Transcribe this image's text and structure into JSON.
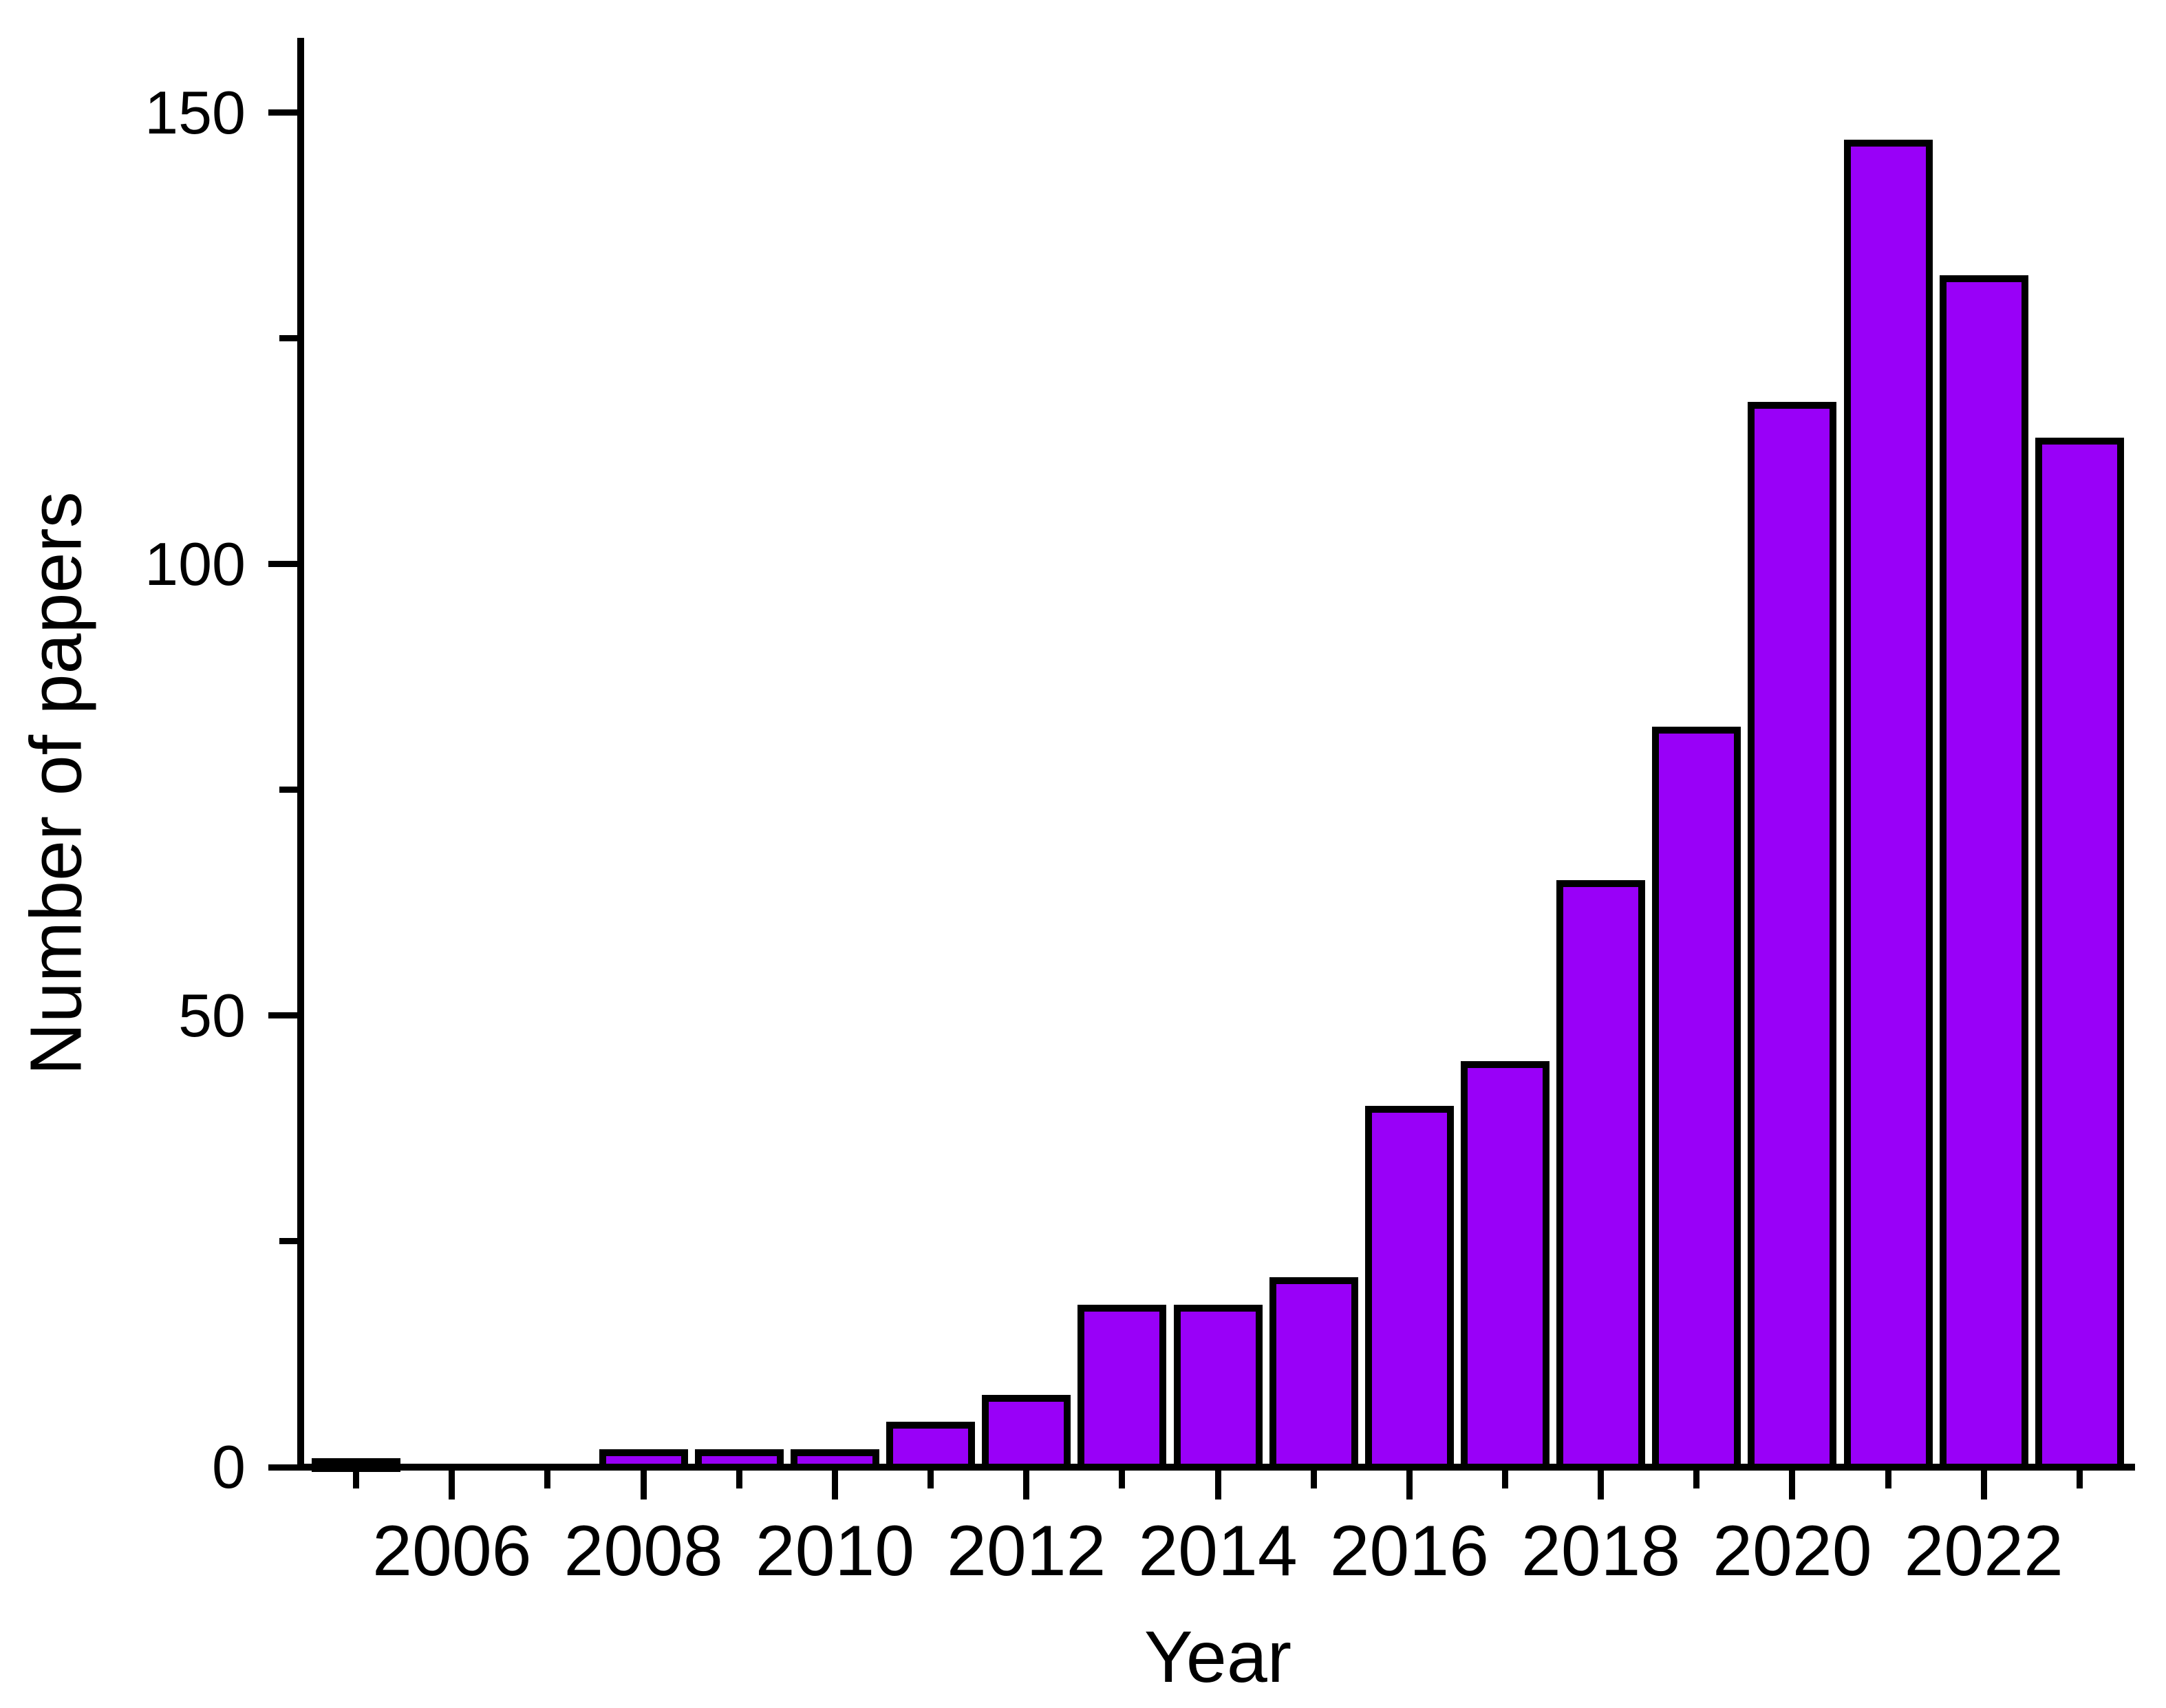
{
  "page": {
    "background": "#FFFFFF"
  },
  "chart_data": {
    "type": "bar",
    "title": "",
    "xlabel": "Year",
    "ylabel": "Number of papers",
    "categories": [
      2005,
      2006,
      2007,
      2008,
      2009,
      2010,
      2011,
      2012,
      2013,
      2014,
      2015,
      2016,
      2017,
      2018,
      2019,
      2020,
      2021,
      2022,
      2023
    ],
    "values": [
      1,
      0,
      0,
      2,
      2,
      2,
      5,
      8,
      18,
      18,
      21,
      40,
      45,
      65,
      82,
      118,
      147,
      132,
      114
    ],
    "x_major_ticks": [
      2006,
      2008,
      2010,
      2012,
      2014,
      2016,
      2018,
      2020,
      2022
    ],
    "x_minor_ticks": [
      2005,
      2007,
      2009,
      2011,
      2013,
      2015,
      2017,
      2019,
      2021,
      2023
    ],
    "y_major_ticks": [
      0,
      50,
      100,
      150
    ],
    "y_minor_ticks": [
      25,
      75,
      125
    ],
    "xlim": [
      2004.42,
      2023.58
    ],
    "ylim": [
      0,
      158.3
    ],
    "grid": false,
    "legend": "none",
    "bar_fill": "#9900F8",
    "bar_border": "#000000",
    "axis_color": "#000000",
    "text_color": "#000000"
  }
}
